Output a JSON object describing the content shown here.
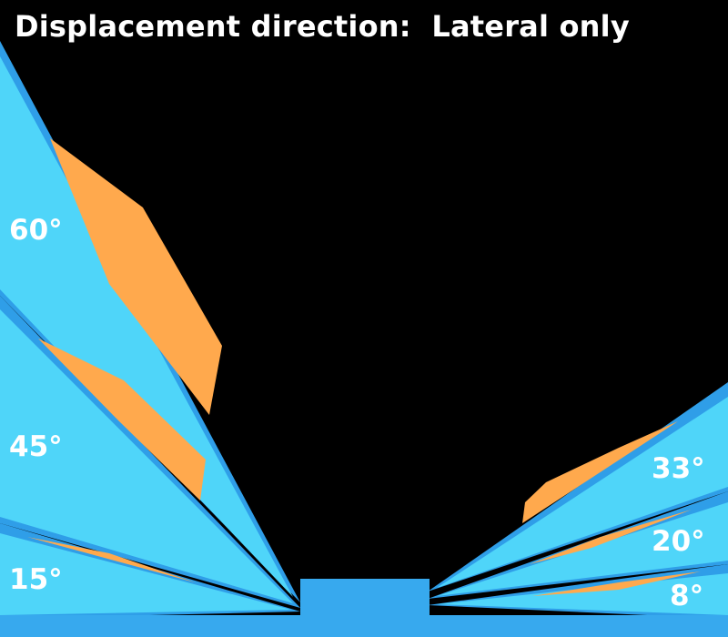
{
  "title": "Displacement direction:  Lateral only",
  "left_angles": [
    "60°",
    "45°",
    "15°"
  ],
  "right_angles": [
    "33°",
    "20°",
    "8°"
  ],
  "colors": {
    "background": "#000000",
    "surface": "#4fd5f9",
    "surface_edge": "#2f9ee8",
    "floor": "#37a9ee",
    "displacement": "#ffa94d",
    "text": "#ffffff"
  }
}
